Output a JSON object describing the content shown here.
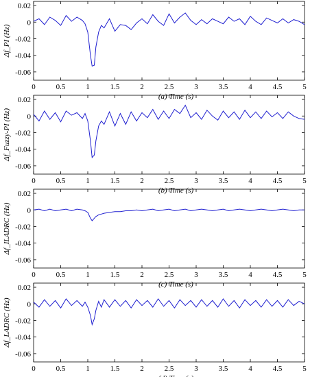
{
  "figure": {
    "panels": [
      {
        "id": "a",
        "caption": "(a)  Time (s)",
        "ylabel": "Δf_PI (Hz)"
      },
      {
        "id": "b",
        "caption": "(b)  Time (s)",
        "ylabel": "Δf_Fuzzy-PI (Hz)"
      },
      {
        "id": "c",
        "caption": "(c)  Time (s)",
        "ylabel": "Δf_ILADRC (Hz)"
      },
      {
        "id": "d",
        "caption": "(d)  Time (s)",
        "ylabel": "Δf_LADRC (Hz)"
      }
    ]
  },
  "chart_data": [
    {
      "type": "line",
      "caption": "(a)  Time (s)",
      "xlabel": "Time (s)",
      "ylabel": "Δf_PI (Hz)",
      "xlim": [
        0,
        5
      ],
      "ylim": [
        -0.07,
        0.025
      ],
      "xticks": [
        "0",
        "0.5",
        "1",
        "1.5",
        "2",
        "2.5",
        "3",
        "3.5",
        "4",
        "4.5",
        "5"
      ],
      "yticks": [
        "0.02",
        "0",
        "-0.02",
        "-0.04",
        "-0.06"
      ],
      "grid": false,
      "line_color": "#1f1fd0",
      "series": [
        {
          "x": [
            0,
            0.1,
            0.2,
            0.3,
            0.4,
            0.5,
            0.6,
            0.7,
            0.8,
            0.9,
            0.95,
            1.0,
            1.05,
            1.08,
            1.12,
            1.15,
            1.2,
            1.25,
            1.3,
            1.4,
            1.5,
            1.6,
            1.7,
            1.8,
            1.9,
            2.0,
            2.1,
            2.2,
            2.3,
            2.4,
            2.5,
            2.6,
            2.7,
            2.8,
            2.9,
            3.0,
            3.1,
            3.2,
            3.3,
            3.4,
            3.5,
            3.6,
            3.7,
            3.8,
            3.9,
            4.0,
            4.1,
            4.2,
            4.3,
            4.4,
            4.5,
            4.6,
            4.7,
            4.8,
            4.9,
            5.0
          ],
          "y": [
            0.001,
            0.004,
            -0.003,
            0.006,
            0.002,
            -0.004,
            0.008,
            0.001,
            0.006,
            0.002,
            -0.002,
            -0.012,
            -0.04,
            -0.053,
            -0.052,
            -0.03,
            -0.012,
            -0.004,
            -0.007,
            0.004,
            -0.011,
            -0.003,
            -0.004,
            -0.009,
            -0.001,
            0.004,
            -0.002,
            0.009,
            0.001,
            -0.004,
            0.01,
            -0.001,
            0.006,
            0.011,
            0.002,
            -0.003,
            0.003,
            -0.002,
            0.004,
            0.001,
            -0.002,
            0.006,
            0.001,
            0.004,
            -0.003,
            0.007,
            0.001,
            -0.003,
            0.005,
            0.002,
            -0.001,
            0.004,
            -0.001,
            0.003,
            0.001,
            -0.003
          ]
        }
      ]
    },
    {
      "type": "line",
      "caption": "(b)  Time (s)",
      "xlabel": "Time (s)",
      "ylabel": "Δf_Fuzzy-PI (Hz)",
      "xlim": [
        0,
        5
      ],
      "ylim": [
        -0.07,
        0.025
      ],
      "xticks": [
        "0",
        "0.5",
        "1",
        "1.5",
        "2",
        "2.5",
        "3",
        "3.5",
        "4",
        "4.5",
        "5"
      ],
      "yticks": [
        "0.02",
        "0",
        "-0.02",
        "-0.04",
        "-0.06"
      ],
      "grid": false,
      "line_color": "#1f1fd0",
      "series": [
        {
          "x": [
            0,
            0.1,
            0.2,
            0.3,
            0.4,
            0.5,
            0.6,
            0.7,
            0.8,
            0.9,
            0.95,
            1.0,
            1.05,
            1.08,
            1.12,
            1.15,
            1.2,
            1.25,
            1.3,
            1.4,
            1.5,
            1.6,
            1.7,
            1.8,
            1.9,
            2.0,
            2.1,
            2.2,
            2.3,
            2.4,
            2.5,
            2.6,
            2.7,
            2.8,
            2.9,
            3.0,
            3.1,
            3.2,
            3.3,
            3.4,
            3.5,
            3.6,
            3.7,
            3.8,
            3.9,
            4.0,
            4.1,
            4.2,
            4.3,
            4.4,
            4.5,
            4.6,
            4.7,
            4.8,
            4.9,
            5.0
          ],
          "y": [
            0.002,
            -0.006,
            0.006,
            -0.004,
            0.004,
            -0.007,
            0.006,
            0.001,
            0.004,
            -0.003,
            0.003,
            -0.006,
            -0.03,
            -0.05,
            -0.047,
            -0.03,
            -0.012,
            -0.006,
            -0.01,
            0.005,
            -0.012,
            0.003,
            -0.01,
            0.005,
            -0.006,
            0.004,
            -0.002,
            0.008,
            -0.004,
            0.006,
            -0.003,
            0.008,
            0.003,
            0.013,
            -0.002,
            0.004,
            -0.004,
            0.007,
            0.0,
            -0.005,
            0.006,
            -0.002,
            0.005,
            -0.004,
            0.007,
            -0.002,
            0.005,
            -0.003,
            0.006,
            -0.001,
            0.004,
            -0.003,
            0.005,
            0.0,
            -0.003,
            -0.004
          ]
        }
      ]
    },
    {
      "type": "line",
      "caption": "(c)  Time (s)",
      "xlabel": "Time (s)",
      "ylabel": "Δf_ILADRC (Hz)",
      "xlim": [
        0,
        5
      ],
      "ylim": [
        -0.07,
        0.025
      ],
      "xticks": [
        "0",
        "0.5",
        "1",
        "1.5",
        "2",
        "2.5",
        "3",
        "3.5",
        "4",
        "4.5",
        "5"
      ],
      "yticks": [
        "0.02",
        "0",
        "-0.02",
        "-0.04",
        "-0.06"
      ],
      "grid": false,
      "line_color": "#1f1fd0",
      "series": [
        {
          "x": [
            0,
            0.1,
            0.2,
            0.3,
            0.4,
            0.5,
            0.6,
            0.7,
            0.8,
            0.9,
            0.95,
            1.0,
            1.05,
            1.08,
            1.12,
            1.15,
            1.2,
            1.25,
            1.3,
            1.4,
            1.5,
            1.6,
            1.7,
            1.8,
            1.9,
            2.0,
            2.1,
            2.2,
            2.3,
            2.4,
            2.5,
            2.6,
            2.7,
            2.8,
            2.9,
            3.0,
            3.1,
            3.2,
            3.3,
            3.4,
            3.5,
            3.6,
            3.7,
            3.8,
            3.9,
            4.0,
            4.1,
            4.2,
            4.3,
            4.4,
            4.5,
            4.6,
            4.7,
            4.8,
            4.9,
            5.0
          ],
          "y": [
            0.0,
            0.001,
            -0.001,
            0.001,
            -0.001,
            0.0,
            0.001,
            -0.001,
            0.001,
            0.0,
            -0.001,
            -0.003,
            -0.01,
            -0.013,
            -0.01,
            -0.008,
            -0.006,
            -0.005,
            -0.004,
            -0.003,
            -0.002,
            -0.002,
            -0.001,
            -0.001,
            0.0,
            -0.001,
            0.0,
            0.001,
            -0.001,
            0.0,
            0.001,
            -0.001,
            0.0,
            0.001,
            -0.001,
            0.0,
            0.001,
            0.0,
            -0.001,
            0.0,
            0.001,
            -0.001,
            0.0,
            0.001,
            0.0,
            -0.001,
            0.0,
            0.001,
            0.0,
            -0.001,
            0.0,
            0.001,
            0.0,
            -0.001,
            0.0,
            0.0
          ]
        }
      ]
    },
    {
      "type": "line",
      "caption": "(d)  Time (s)",
      "xlabel": "Time (s)",
      "ylabel": "Δf_LADRC (Hz)",
      "xlim": [
        0,
        5
      ],
      "ylim": [
        -0.07,
        0.025
      ],
      "xticks": [
        "0",
        "0.5",
        "1",
        "1.5",
        "2",
        "2.5",
        "3",
        "3.5",
        "4",
        "4.5",
        "5"
      ],
      "yticks": [
        "0.02",
        "0",
        "-0.02",
        "-0.04",
        "-0.06"
      ],
      "grid": false,
      "line_color": "#1f1fd0",
      "series": [
        {
          "x": [
            0,
            0.1,
            0.2,
            0.3,
            0.4,
            0.5,
            0.6,
            0.7,
            0.8,
            0.9,
            0.95,
            1.0,
            1.05,
            1.08,
            1.12,
            1.15,
            1.2,
            1.25,
            1.3,
            1.4,
            1.5,
            1.6,
            1.7,
            1.8,
            1.9,
            2.0,
            2.1,
            2.2,
            2.3,
            2.4,
            2.5,
            2.6,
            2.7,
            2.8,
            2.9,
            3.0,
            3.1,
            3.2,
            3.3,
            3.4,
            3.5,
            3.6,
            3.7,
            3.8,
            3.9,
            4.0,
            4.1,
            4.2,
            4.3,
            4.4,
            4.5,
            4.6,
            4.7,
            4.8,
            4.9,
            5.0
          ],
          "y": [
            0.002,
            -0.004,
            0.005,
            -0.003,
            0.004,
            -0.005,
            0.006,
            -0.002,
            0.004,
            -0.003,
            0.002,
            -0.004,
            -0.014,
            -0.025,
            -0.018,
            -0.008,
            0.003,
            -0.004,
            0.005,
            -0.004,
            0.005,
            -0.003,
            0.004,
            -0.005,
            0.005,
            -0.002,
            0.004,
            -0.004,
            0.006,
            -0.003,
            0.004,
            -0.005,
            0.005,
            -0.002,
            0.004,
            -0.004,
            0.005,
            -0.003,
            0.004,
            -0.004,
            0.006,
            -0.003,
            0.004,
            -0.005,
            0.005,
            -0.002,
            0.004,
            -0.004,
            0.005,
            -0.003,
            0.004,
            -0.004,
            0.005,
            -0.002,
            0.003,
            0.0
          ]
        }
      ]
    }
  ]
}
